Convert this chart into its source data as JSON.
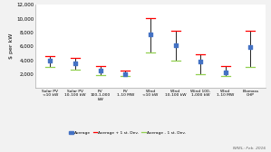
{
  "categories": [
    "Solar PV\n<10 kW",
    "Solar PV\n10-100 kW",
    "PV\n100-1,000\nkW",
    "PV\n1-10 MW",
    "Wind\n<10 kW",
    "Wind\n10-100 kW",
    "Wind 100-\n1,000 kW",
    "Wind\n1-10 MW",
    "Biomass\nCHP"
  ],
  "averages": [
    3900,
    3500,
    2500,
    2050,
    7750,
    6100,
    3800,
    2300,
    5950
  ],
  "upper": [
    4600,
    4400,
    3200,
    2550,
    10000,
    8200,
    4800,
    3200,
    8300
  ],
  "lower": [
    3000,
    2600,
    1900,
    1700,
    5100,
    4000,
    2050,
    1700,
    3050
  ],
  "avg_color": "#4472C4",
  "upper_color": "#FF0000",
  "lower_color": "#92D050",
  "ylabel": "$ per kW",
  "ylim": [
    0,
    12000
  ],
  "yticks": [
    0,
    2000,
    4000,
    6000,
    8000,
    10000,
    12000
  ],
  "ytick_labels": [
    "",
    "2,000",
    "4,000",
    "6,000",
    "8,000",
    "10,000",
    "12,000"
  ],
  "legend_avg": "Average",
  "legend_upper": "Average + 1 st. Dev.",
  "legend_lower": "Average - 1 st. Dev.",
  "footnote": "NREL: Feb. 2016",
  "bg_color": "#F2F2F2",
  "plot_bg_color": "#FFFFFF",
  "grid_color": "#FFFFFF"
}
